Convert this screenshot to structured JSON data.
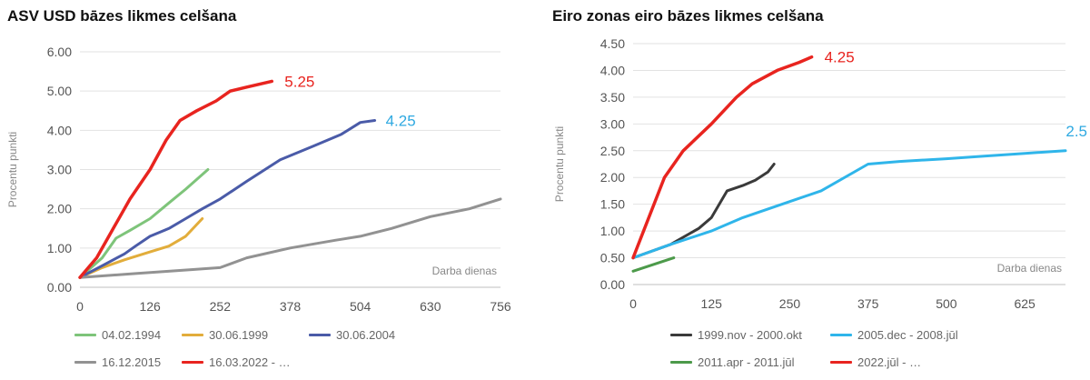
{
  "chart_data": [
    {
      "type": "line",
      "title": "ASV USD bāzes likmes celšana",
      "ylabel": "Procentu punkti",
      "xlabel": "Darba dienas",
      "xlim": [
        0,
        756
      ],
      "ylim": [
        0,
        6
      ],
      "x_ticks": [
        "0",
        "126",
        "252",
        "378",
        "504",
        "630",
        "756"
      ],
      "y_ticks": [
        "0.00",
        "1.00",
        "2.00",
        "3.00",
        "4.00",
        "5.00",
        "6.00"
      ],
      "grid": true,
      "legend_position": "bottom",
      "series": [
        {
          "name": "04.02.1994",
          "color": "#7ec47a",
          "x": [
            0,
            40,
            65,
            90,
            126,
            160,
            190,
            230
          ],
          "y": [
            0.25,
            0.75,
            1.25,
            1.45,
            1.75,
            2.15,
            2.5,
            3.0
          ]
        },
        {
          "name": "30.06.1999",
          "color": "#e2ad3b",
          "x": [
            0,
            40,
            80,
            126,
            160,
            190,
            220
          ],
          "y": [
            0.25,
            0.5,
            0.7,
            0.9,
            1.05,
            1.3,
            1.75
          ]
        },
        {
          "name": "30.06.2004",
          "color": "#4a5ba8",
          "x": [
            0,
            40,
            80,
            100,
            126,
            160,
            190,
            220,
            252,
            300,
            360,
            420,
            470,
            504,
            530
          ],
          "y": [
            0.25,
            0.55,
            0.85,
            1.05,
            1.3,
            1.5,
            1.75,
            2.0,
            2.25,
            2.7,
            3.25,
            3.6,
            3.9,
            4.2,
            4.25
          ]
        },
        {
          "name": "16.12.2015",
          "color": "#929292",
          "x": [
            0,
            100,
            150,
            200,
            252,
            300,
            378,
            460,
            504,
            560,
            630,
            700,
            756
          ],
          "y": [
            0.25,
            0.35,
            0.4,
            0.45,
            0.5,
            0.75,
            1.0,
            1.2,
            1.3,
            1.5,
            1.8,
            2.0,
            2.25
          ]
        },
        {
          "name": "16.03.2022 - …",
          "color": "#e8241f",
          "x": [
            0,
            30,
            60,
            90,
            126,
            155,
            180,
            210,
            245,
            270,
            300,
            345
          ],
          "y": [
            0.25,
            0.75,
            1.5,
            2.25,
            3.0,
            3.75,
            4.25,
            4.5,
            4.75,
            5.0,
            5.1,
            5.25
          ]
        }
      ],
      "annotations": [
        {
          "text": "5.25",
          "color": "#e8241f",
          "x": 345,
          "y": 5.25
        },
        {
          "text": "4.25",
          "color": "#2fa9e1",
          "x": 530,
          "y": 4.25
        }
      ]
    },
    {
      "type": "line",
      "title": "Eiro zonas eiro bāzes likmes celšana",
      "ylabel": "Procentu punkti",
      "xlabel": "Darba dienas",
      "xlim": [
        0,
        690
      ],
      "ylim": [
        0,
        4.5
      ],
      "x_ticks": [
        "0",
        "125",
        "250",
        "375",
        "500",
        "625"
      ],
      "y_ticks": [
        "0.00",
        "0.50",
        "1.00",
        "1.50",
        "2.00",
        "2.50",
        "3.00",
        "3.50",
        "4.00",
        "4.50"
      ],
      "grid": true,
      "legend_position": "bottom",
      "series": [
        {
          "name": "1999.nov - 2000.okt",
          "color": "#3a3a3a",
          "x": [
            0,
            60,
            105,
            125,
            150,
            175,
            195,
            215,
            225
          ],
          "y": [
            0.5,
            0.75,
            1.05,
            1.25,
            1.75,
            1.85,
            1.95,
            2.1,
            2.25
          ]
        },
        {
          "name": "2005.dec - 2008.jūl",
          "color": "#2fb5ea",
          "x": [
            0,
            60,
            125,
            175,
            250,
            300,
            375,
            425,
            500,
            560,
            625,
            690
          ],
          "y": [
            0.5,
            0.75,
            1.0,
            1.25,
            1.55,
            1.75,
            2.25,
            2.3,
            2.35,
            2.4,
            2.45,
            2.5
          ]
        },
        {
          "name": "2011.apr - 2011.jūl",
          "color": "#4c9a4a",
          "x": [
            0,
            65
          ],
          "y": [
            0.25,
            0.5
          ]
        },
        {
          "name": "2022.jūl - …",
          "color": "#e8241f",
          "x": [
            0,
            50,
            80,
            125,
            165,
            190,
            230,
            265,
            285
          ],
          "y": [
            0.5,
            2.0,
            2.5,
            3.0,
            3.5,
            3.75,
            4.0,
            4.15,
            4.25
          ]
        }
      ],
      "annotations": [
        {
          "text": "4.25",
          "color": "#e8241f",
          "x": 285,
          "y": 4.25
        },
        {
          "text": "2.5",
          "color": "#2fa9e1",
          "x": 690,
          "y": 2.5
        }
      ]
    }
  ]
}
